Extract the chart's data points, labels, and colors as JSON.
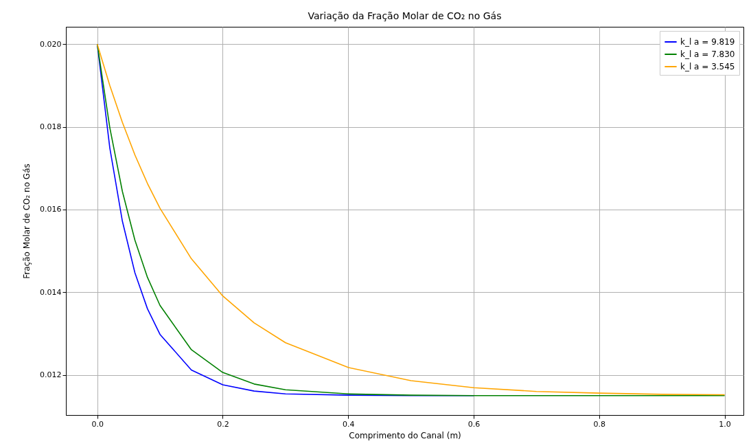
{
  "chart_data": {
    "type": "line",
    "title": "Variação da Fração Molar de CO₂ no Gás",
    "xlabel": "Comprimento do Canal (m)",
    "ylabel": "Fração Molar de CO₂ no Gás",
    "x": [
      0,
      0.02,
      0.04,
      0.06,
      0.08,
      0.1,
      0.15,
      0.2,
      0.25,
      0.3,
      0.4,
      0.5,
      0.6,
      0.7,
      0.8,
      0.9,
      1.0
    ],
    "series": [
      {
        "name": "k_l a = 9.819",
        "color": "#0000ff",
        "values": [
          0.02,
          0.01749,
          0.01572,
          0.01447,
          0.0136,
          0.01298,
          0.01212,
          0.01176,
          0.01161,
          0.01154,
          0.01151,
          0.0115,
          0.0115,
          null,
          null,
          null,
          null
        ]
      },
      {
        "name": "k_l a = 7.830",
        "color": "#008000",
        "values": [
          0.02,
          0.01798,
          0.01644,
          0.01526,
          0.01436,
          0.01368,
          0.01261,
          0.01206,
          0.01178,
          0.01164,
          0.01154,
          0.01151,
          0.0115,
          0.0115,
          0.0115,
          0.0115,
          0.0115
        ]
      },
      {
        "name": "k_l a = 3.545",
        "color": "#ffa500",
        "values": [
          0.02,
          0.019,
          0.01811,
          0.01732,
          0.01663,
          0.01603,
          0.01481,
          0.01391,
          0.01326,
          0.01278,
          0.01218,
          0.01186,
          0.01169,
          0.0116,
          0.01156,
          0.01153,
          0.01152
        ]
      }
    ],
    "xlim": [
      -0.05,
      1.03
    ],
    "ylim": [
      0.01103,
      0.02042
    ],
    "xticks": [
      {
        "value": 0,
        "label": "0.0"
      },
      0.2,
      0.4,
      0.6,
      0.8,
      {
        "value": 1,
        "label": "1.0"
      }
    ],
    "yticks": [
      {
        "value": 0.012,
        "label": "0.012"
      },
      0.014,
      0.016,
      0.018,
      {
        "value": 0.02,
        "label": "0.020"
      }
    ],
    "grid": true,
    "legend": "top right",
    "line_style": "solid"
  }
}
